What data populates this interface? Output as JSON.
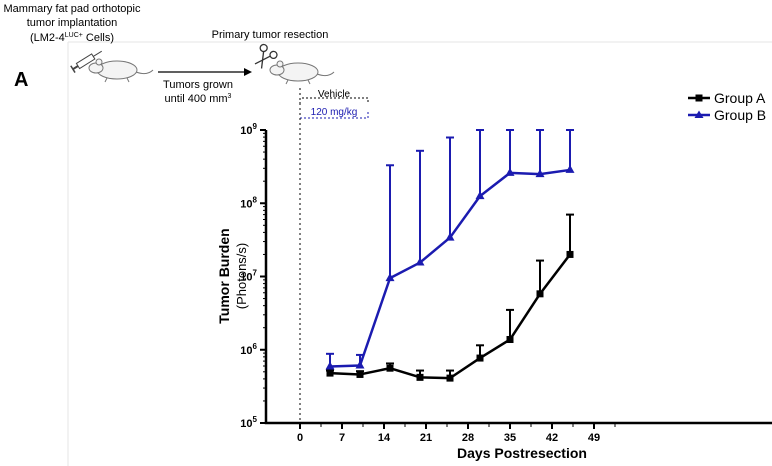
{
  "header": {
    "implant_line1": "Mammary fat pad orthotopic",
    "implant_line2": "tumor implantation",
    "cells_prefix": "(LM2-4",
    "cells_sup": "LUC+",
    "cells_suffix": " Cells)",
    "resection": "Primary tumor resection",
    "grown_line1": "Tumors grown",
    "grown_line2": "until 400 mm",
    "grown_sup": "3"
  },
  "panel_label": "A",
  "treatment_labels": {
    "vehicle": "Vehicle",
    "dose": "120 mg/kg"
  },
  "colors": {
    "group_a": "#000000",
    "group_b": "#1b1bb0",
    "dose_text": "#1b1bb0"
  },
  "chart_data": {
    "type": "line",
    "xlabel": "Days Postresection",
    "ylabel_line1": "Tumor Burden",
    "ylabel_line2": "(Photons/s)",
    "y_scale": "log",
    "xlim": [
      0,
      56
    ],
    "ylim": [
      100000,
      1000000000
    ],
    "x_ticks": [
      0,
      7,
      14,
      21,
      28,
      35,
      42,
      49
    ],
    "y_ticks": [
      {
        "base": "10",
        "exp": "5"
      },
      {
        "base": "10",
        "exp": "6"
      },
      {
        "base": "10",
        "exp": "7"
      },
      {
        "base": "10",
        "exp": "8"
      },
      {
        "base": "10",
        "exp": "9"
      }
    ],
    "legend_position": "top-right",
    "series": [
      {
        "name": "Group A",
        "marker": "square",
        "x": [
          5,
          10,
          15,
          20,
          25,
          30,
          35,
          40,
          45
        ],
        "y": [
          480000,
          460000,
          560000,
          420000,
          410000,
          770000,
          1380000,
          5800000,
          20000000
        ],
        "err_upper": [
          520000,
          510000,
          650000,
          520000,
          520000,
          1150000,
          3500000,
          16500000,
          70000000
        ]
      },
      {
        "name": "Group B",
        "marker": "triangle",
        "x": [
          5,
          10,
          15,
          20,
          25,
          30,
          35,
          40,
          45
        ],
        "y": [
          590000,
          610000,
          9500000,
          15500000,
          34000000,
          125000000,
          260000000,
          250000000,
          285000000
        ],
        "err_upper": [
          880000,
          850000,
          330000000,
          520000000,
          790000000,
          3600000000,
          7700000000,
          7600000000,
          7800000000
        ]
      }
    ]
  }
}
